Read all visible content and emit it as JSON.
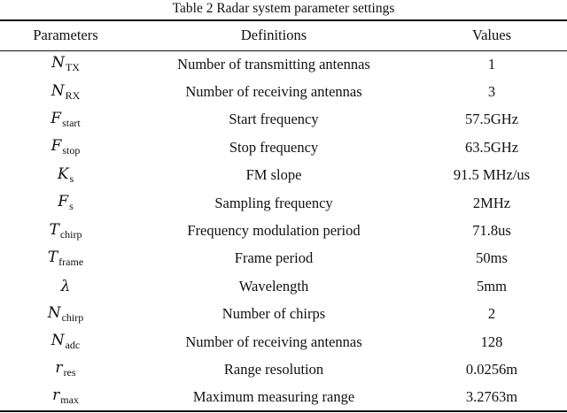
{
  "caption": "Table 2 Radar system parameter settings",
  "table": {
    "headers": [
      "Parameters",
      "Definitions",
      "Values"
    ],
    "rows": [
      {
        "symbol": "N",
        "subscript": "TX",
        "definition": "Number of transmitting antennas",
        "value": "1"
      },
      {
        "symbol": "N",
        "subscript": "RX",
        "definition": "Number of receiving antennas",
        "value": "3"
      },
      {
        "symbol": "F",
        "subscript": "start",
        "definition": "Start frequency",
        "value": "57.5GHz"
      },
      {
        "symbol": "F",
        "subscript": "stop",
        "definition": "Stop frequency",
        "value": "63.5GHz"
      },
      {
        "symbol": "K",
        "subscript": "s",
        "definition": "FM slope",
        "value": "91.5 MHz/us"
      },
      {
        "symbol": "F",
        "subscript": "s",
        "definition": "Sampling frequency",
        "value": "2MHz"
      },
      {
        "symbol": "T",
        "subscript": "chirp",
        "definition": "Frequency modulation period",
        "value": "71.8us"
      },
      {
        "symbol": "T",
        "subscript": "frame",
        "definition": "Frame period",
        "value": "50ms"
      },
      {
        "symbol": "λ",
        "subscript": "",
        "definition": "Wavelength",
        "value": "5mm"
      },
      {
        "symbol": "N",
        "subscript": "chirp",
        "definition": "Number of chirps",
        "value": "2"
      },
      {
        "symbol": "N",
        "subscript": "adc",
        "definition": "Number of receiving antennas",
        "value": "128"
      },
      {
        "symbol": "r",
        "subscript": "res",
        "definition": "Range resolution",
        "value": "0.0256m"
      },
      {
        "symbol": "r",
        "subscript": "max",
        "definition": "Maximum measuring range",
        "value": "3.2763m"
      }
    ]
  }
}
